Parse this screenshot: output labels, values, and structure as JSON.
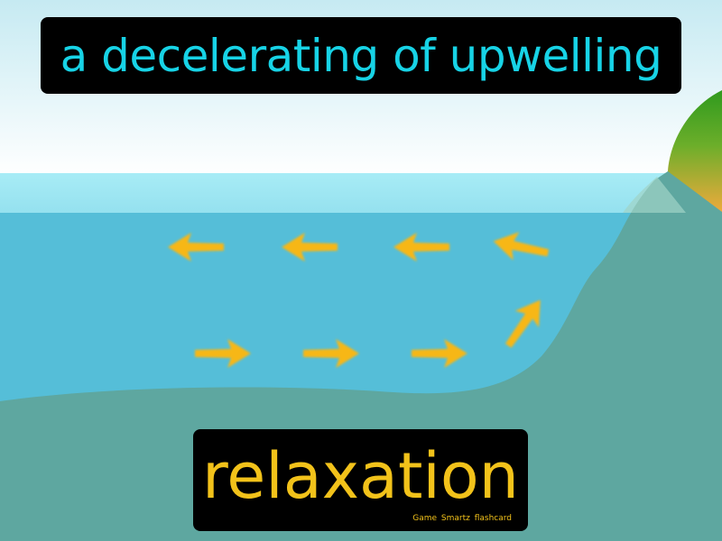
{
  "definition": "a decelerating of upwelling",
  "term": "relaxation",
  "brand": "Game Smartz flashcard",
  "colors": {
    "definition_text": "#17d3e6",
    "term_text": "#f2c21a",
    "label_background": "#000000",
    "arrow": "#f7b716",
    "ocean": "#55bed8",
    "seabed": "#5ea7a0",
    "sky_top": "#c6eaf2"
  },
  "arrows": {
    "top_row_direction": "left",
    "bottom_row_direction": "right",
    "riser_direction": "up-right"
  }
}
